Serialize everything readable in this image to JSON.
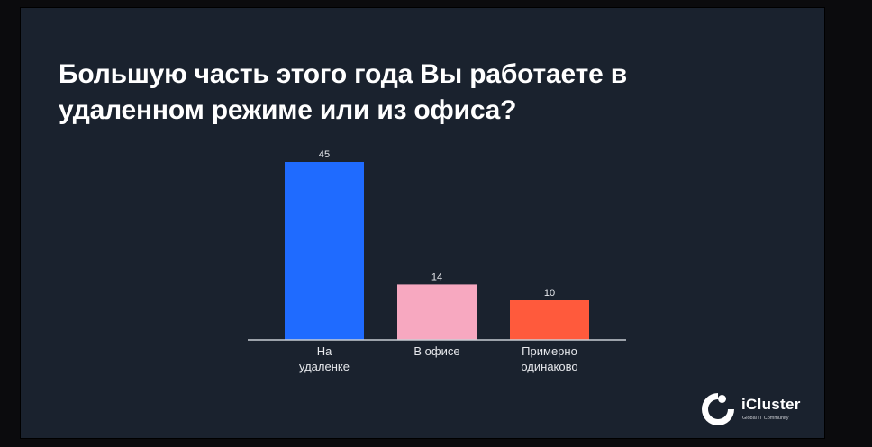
{
  "slide": {
    "title": "Большую часть этого года Вы работаете в удаленном режиме или из офиса?"
  },
  "logo": {
    "name": "iCluster",
    "tagline": "Global IT Community"
  },
  "chart_data": {
    "type": "bar",
    "title": "Большую часть этого года Вы работаете в удаленном режиме или из офиса?",
    "categories": [
      [
        "На",
        "удаленке"
      ],
      [
        "В офисе"
      ],
      [
        "Примерно",
        "одинаково"
      ]
    ],
    "values": [
      45,
      14,
      10
    ],
    "colors": [
      "#1f6bff",
      "#f7a8c0",
      "#ff5a3c"
    ],
    "ylim": [
      0,
      45
    ],
    "grid": false,
    "legend": "none",
    "baseline_color": "#c8ccd4"
  }
}
